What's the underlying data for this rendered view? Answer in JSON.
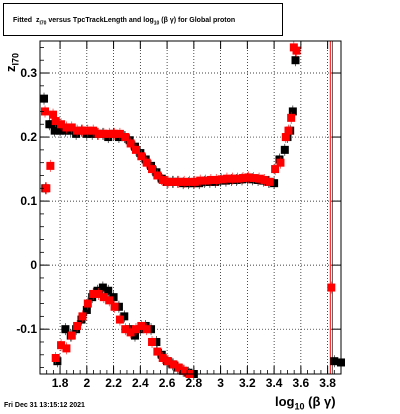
{
  "title": {
    "prefix": "Fitted",
    "z_symbol": "z",
    "z_sub": "I70",
    "middle": "versus TpcTrackLength and log",
    "log_sub": "10",
    "suffix": "(β  γ) for Global proton"
  },
  "footer": {
    "datestamp": "Fri Dec 31 13:15:12 2021"
  },
  "axes": {
    "x_title_main": "log",
    "x_title_sub": "10",
    "x_title_suffix": "(β γ)",
    "y_title_main": "z",
    "y_title_sub": "I70"
  },
  "chart_data": {
    "type": "scatter",
    "xlim": [
      1.65,
      3.9
    ],
    "ylim": [
      -0.17,
      0.35
    ],
    "x_ticks": [
      "1.8",
      "2",
      "2.2",
      "2.4",
      "2.6",
      "2.8",
      "3",
      "3.2",
      "3.4",
      "3.6",
      "3.8"
    ],
    "y_ticks": [
      "-0.1",
      "0",
      "0.1",
      "0.2",
      "0.3"
    ],
    "grid": true,
    "vertical_line": 3.82,
    "colors": {
      "black_series": "#000000",
      "red_series": "#ff0000"
    },
    "series": [
      {
        "color": "black",
        "marker": "square",
        "upper_points": [
          [
            1.68,
            0.26
          ],
          [
            1.69,
            0.12
          ],
          [
            1.72,
            0.22
          ],
          [
            1.74,
            0.22
          ],
          [
            1.76,
            0.21
          ],
          [
            1.78,
            0.215
          ],
          [
            1.8,
            0.21
          ],
          [
            1.84,
            0.21
          ],
          [
            1.88,
            0.21
          ],
          [
            1.92,
            0.205
          ],
          [
            1.96,
            0.21
          ],
          [
            2.0,
            0.205
          ],
          [
            2.04,
            0.205
          ],
          [
            2.08,
            0.205
          ],
          [
            2.12,
            0.205
          ],
          [
            2.16,
            0.2
          ],
          [
            2.2,
            0.205
          ],
          [
            2.24,
            0.2
          ],
          [
            2.28,
            0.2
          ],
          [
            2.32,
            0.195
          ],
          [
            2.36,
            0.185
          ],
          [
            2.4,
            0.175
          ],
          [
            2.44,
            0.165
          ],
          [
            2.48,
            0.155
          ],
          [
            2.52,
            0.145
          ],
          [
            2.56,
            0.135
          ],
          [
            2.6,
            0.13
          ],
          [
            2.64,
            0.13
          ],
          [
            2.68,
            0.13
          ],
          [
            2.72,
            0.128
          ],
          [
            2.76,
            0.128
          ],
          [
            2.8,
            0.128
          ],
          [
            2.84,
            0.128
          ],
          [
            2.88,
            0.13
          ],
          [
            2.92,
            0.13
          ],
          [
            2.96,
            0.13
          ],
          [
            3.0,
            0.132
          ],
          [
            3.04,
            0.132
          ],
          [
            3.08,
            0.133
          ],
          [
            3.12,
            0.133
          ],
          [
            3.16,
            0.134
          ],
          [
            3.2,
            0.135
          ],
          [
            3.24,
            0.134
          ],
          [
            3.28,
            0.133
          ],
          [
            3.32,
            0.132
          ],
          [
            3.36,
            0.13
          ],
          [
            3.4,
            0.128
          ],
          [
            3.44,
            0.165
          ],
          [
            3.48,
            0.18
          ],
          [
            3.5,
            0.2
          ],
          [
            3.52,
            0.21
          ],
          [
            3.54,
            0.24
          ],
          [
            3.56,
            0.32
          ]
        ],
        "lower_points": [
          [
            1.78,
            -0.15
          ],
          [
            1.84,
            -0.1
          ],
          [
            1.88,
            -0.11
          ],
          [
            1.92,
            -0.1
          ],
          [
            1.96,
            -0.085
          ],
          [
            2.0,
            -0.07
          ],
          [
            2.04,
            -0.05
          ],
          [
            2.08,
            -0.04
          ],
          [
            2.12,
            -0.035
          ],
          [
            2.16,
            -0.04
          ],
          [
            2.2,
            -0.05
          ],
          [
            2.24,
            -0.065
          ],
          [
            2.28,
            -0.08
          ],
          [
            2.32,
            -0.1
          ],
          [
            2.36,
            -0.11
          ],
          [
            2.4,
            -0.1
          ],
          [
            2.44,
            -0.095
          ],
          [
            2.48,
            -0.1
          ],
          [
            2.52,
            -0.12
          ],
          [
            2.56,
            -0.14
          ],
          [
            2.6,
            -0.15
          ],
          [
            2.64,
            -0.155
          ],
          [
            2.68,
            -0.16
          ],
          [
            2.72,
            -0.165
          ],
          [
            2.76,
            -0.168
          ],
          [
            2.8,
            -0.17
          ],
          [
            3.85,
            -0.15
          ],
          [
            3.9,
            -0.152
          ]
        ]
      },
      {
        "color": "red",
        "marker": "square",
        "upper_points": [
          [
            1.68,
            0.24
          ],
          [
            1.69,
            0.12
          ],
          [
            1.72,
            0.155
          ],
          [
            1.74,
            0.235
          ],
          [
            1.76,
            0.225
          ],
          [
            1.8,
            0.22
          ],
          [
            1.84,
            0.215
          ],
          [
            1.88,
            0.215
          ],
          [
            1.92,
            0.21
          ],
          [
            1.96,
            0.21
          ],
          [
            2.0,
            0.21
          ],
          [
            2.04,
            0.21
          ],
          [
            2.08,
            0.205
          ],
          [
            2.12,
            0.205
          ],
          [
            2.16,
            0.205
          ],
          [
            2.2,
            0.205
          ],
          [
            2.24,
            0.205
          ],
          [
            2.28,
            0.2
          ],
          [
            2.32,
            0.19
          ],
          [
            2.36,
            0.18
          ],
          [
            2.4,
            0.17
          ],
          [
            2.44,
            0.16
          ],
          [
            2.48,
            0.15
          ],
          [
            2.52,
            0.14
          ],
          [
            2.56,
            0.133
          ],
          [
            2.6,
            0.13
          ],
          [
            2.64,
            0.13
          ],
          [
            2.68,
            0.13
          ],
          [
            2.72,
            0.13
          ],
          [
            2.76,
            0.13
          ],
          [
            2.8,
            0.13
          ],
          [
            2.84,
            0.132
          ],
          [
            2.88,
            0.132
          ],
          [
            2.92,
            0.133
          ],
          [
            2.96,
            0.133
          ],
          [
            3.0,
            0.134
          ],
          [
            3.04,
            0.135
          ],
          [
            3.08,
            0.135
          ],
          [
            3.12,
            0.135
          ],
          [
            3.16,
            0.136
          ],
          [
            3.2,
            0.137
          ],
          [
            3.24,
            0.136
          ],
          [
            3.28,
            0.135
          ],
          [
            3.32,
            0.133
          ],
          [
            3.36,
            0.13
          ],
          [
            3.4,
            0.15
          ],
          [
            3.44,
            0.16
          ],
          [
            3.48,
            0.2
          ],
          [
            3.5,
            0.21
          ],
          [
            3.52,
            0.23
          ],
          [
            3.54,
            0.34
          ],
          [
            3.56,
            0.335
          ]
        ],
        "lower_points": [
          [
            1.76,
            -0.145
          ],
          [
            1.8,
            -0.125
          ],
          [
            1.84,
            -0.13
          ],
          [
            1.88,
            -0.11
          ],
          [
            1.92,
            -0.095
          ],
          [
            1.96,
            -0.08
          ],
          [
            2.0,
            -0.06
          ],
          [
            2.04,
            -0.045
          ],
          [
            2.08,
            -0.045
          ],
          [
            2.12,
            -0.05
          ],
          [
            2.16,
            -0.055
          ],
          [
            2.2,
            -0.065
          ],
          [
            2.24,
            -0.085
          ],
          [
            2.28,
            -0.1
          ],
          [
            2.32,
            -0.105
          ],
          [
            2.36,
            -0.1
          ],
          [
            2.4,
            -0.095
          ],
          [
            2.44,
            -0.1
          ],
          [
            2.48,
            -0.12
          ],
          [
            2.52,
            -0.135
          ],
          [
            2.56,
            -0.145
          ],
          [
            2.6,
            -0.15
          ],
          [
            2.64,
            -0.155
          ],
          [
            2.68,
            -0.16
          ],
          [
            2.72,
            -0.165
          ],
          [
            2.76,
            -0.17
          ],
          [
            3.82,
            -0.035
          ]
        ]
      }
    ]
  }
}
